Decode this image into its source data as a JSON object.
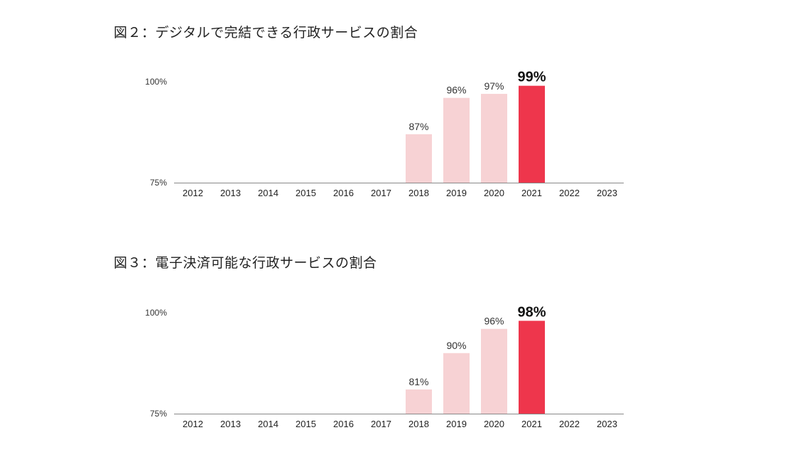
{
  "colors": {
    "normal": "#f7d2d4",
    "highlight": "#ee364c",
    "axis": "#888888"
  },
  "chart_data": [
    {
      "type": "bar",
      "title": "図２：デジタルで完結できる行政サービスの割合",
      "categories": [
        "2012",
        "2013",
        "2014",
        "2015",
        "2016",
        "2017",
        "2018",
        "2019",
        "2020",
        "2021",
        "2022",
        "2023"
      ],
      "values": [
        null,
        null,
        null,
        null,
        null,
        null,
        87,
        96,
        97,
        99,
        null,
        null
      ],
      "data_labels": [
        "",
        "",
        "",
        "",
        "",
        "",
        "87%",
        "96%",
        "97%",
        "99%",
        "",
        ""
      ],
      "highlight_index": 9,
      "ylim": [
        75,
        100
      ],
      "yticks": [
        75,
        100
      ],
      "ytick_labels": [
        "75%",
        "100%"
      ],
      "xlabel": "",
      "ylabel": "",
      "grid": false
    },
    {
      "type": "bar",
      "title": "図３：電子決済可能な行政サービスの割合",
      "categories": [
        "2012",
        "2013",
        "2014",
        "2015",
        "2016",
        "2017",
        "2018",
        "2019",
        "2020",
        "2021",
        "2022",
        "2023"
      ],
      "values": [
        null,
        null,
        null,
        null,
        null,
        null,
        81,
        90,
        96,
        98,
        null,
        null
      ],
      "data_labels": [
        "",
        "",
        "",
        "",
        "",
        "",
        "81%",
        "90%",
        "96%",
        "98%",
        "",
        ""
      ],
      "highlight_index": 9,
      "ylim": [
        75,
        100
      ],
      "yticks": [
        75,
        100
      ],
      "ytick_labels": [
        "75%",
        "100%"
      ],
      "xlabel": "",
      "ylabel": "",
      "grid": false
    }
  ]
}
